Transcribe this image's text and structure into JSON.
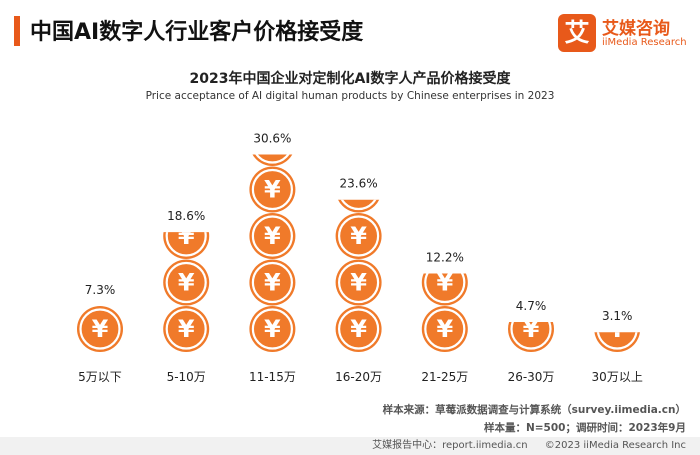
{
  "header": {
    "title": "中国AI数字人行业客户价格接受度",
    "brand_mark": "艾",
    "brand_cn": "艾媒咨询",
    "brand_en": "iiMedia Research"
  },
  "colors": {
    "accent": "#e8591a",
    "coin": "#f07a2a",
    "coin_symbol": "#ffffff"
  },
  "chart_data": {
    "type": "bar",
    "title": "2023年中国企业对定制化AI数字人产品价格接受度",
    "subtitle": "Price acceptance of AI digital human products by Chinese enterprises in 2023",
    "categories": [
      "5万以下",
      "5-10万",
      "11-15万",
      "16-20万",
      "21-25万",
      "26-30万",
      "30万以上"
    ],
    "values": [
      7.3,
      18.6,
      30.6,
      23.6,
      12.2,
      4.7,
      3.1
    ],
    "value_labels": [
      "7.3%",
      "18.6%",
      "30.6%",
      "23.6%",
      "12.2%",
      "4.7%",
      "3.1%"
    ],
    "unit": "%",
    "coin_value": 7.2,
    "coin_symbol": "¥",
    "xlabel": "",
    "ylabel": "",
    "ylim": [
      0,
      32
    ]
  },
  "notes": {
    "source": "样本来源：草莓派数据调查与计算系统（survey.iimedia.cn）",
    "sample": "样本量：N=500；调研时间：2023年9月"
  },
  "footer": {
    "left": "艾媒报告中心：report.iimedia.cn",
    "right": "©2023  iiMedia Research  Inc"
  }
}
